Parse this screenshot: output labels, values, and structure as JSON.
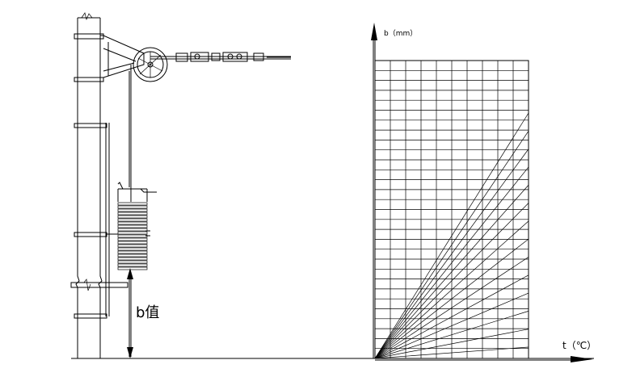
{
  "diagram": {
    "height_label": "b值",
    "y_axis_label": "b（mm）",
    "x_axis_label": "t（℃）",
    "grid": {
      "columns": 10,
      "rows": 30
    },
    "fan_line_count": 14
  }
}
